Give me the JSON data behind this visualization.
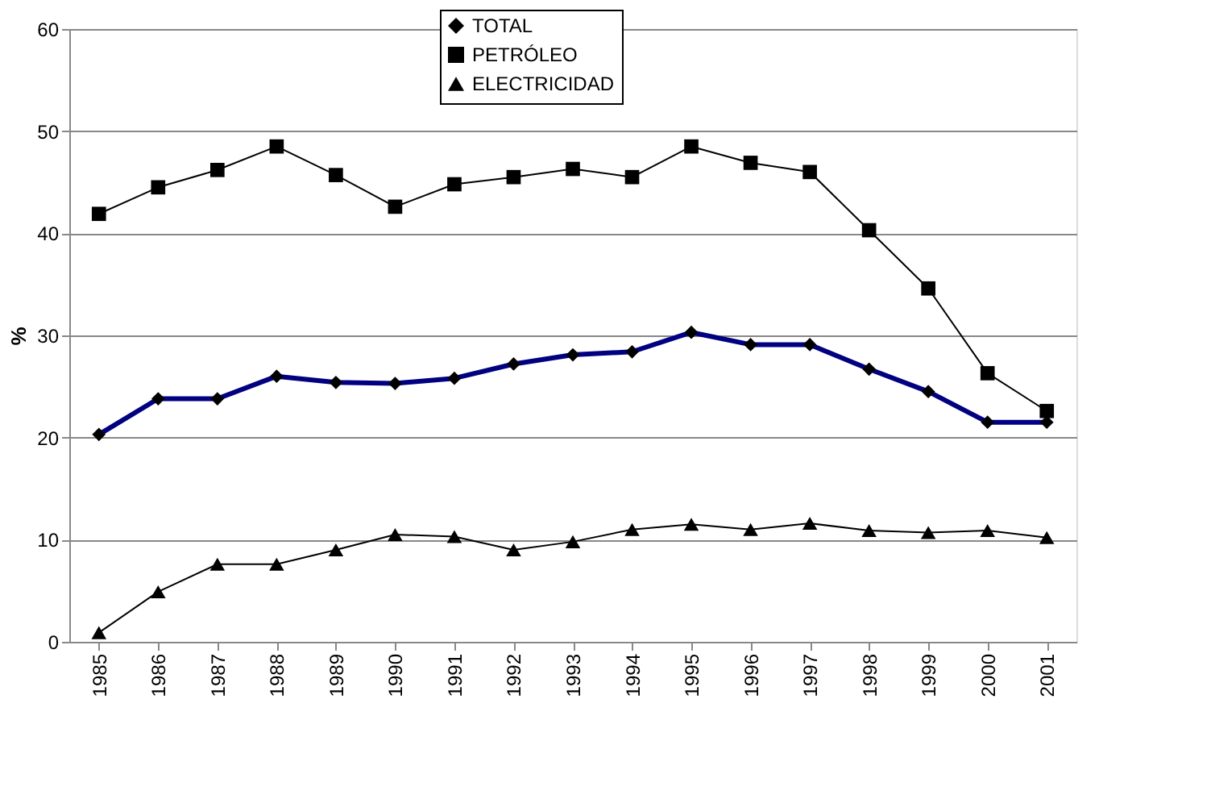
{
  "chart_data": {
    "type": "line",
    "ylabel": "%",
    "categories": [
      "1985",
      "1986",
      "1987",
      "1988",
      "1989",
      "1990",
      "1991",
      "1992",
      "1993",
      "1994",
      "1995",
      "1996",
      "1997",
      "1998",
      "1999",
      "2000",
      "2001"
    ],
    "series": [
      {
        "name": "TOTAL",
        "color": "#000080",
        "marker": "diamond",
        "values": [
          20.3,
          23.8,
          23.8,
          26.0,
          25.4,
          25.3,
          25.8,
          27.2,
          28.1,
          28.4,
          30.3,
          29.1,
          29.1,
          26.7,
          24.5,
          21.5,
          21.5
        ]
      },
      {
        "name": "PETRÓLEO",
        "color": "#000000",
        "marker": "square",
        "values": [
          41.9,
          44.5,
          46.2,
          48.5,
          45.7,
          42.6,
          44.8,
          45.5,
          46.3,
          45.5,
          48.5,
          46.9,
          46.0,
          40.3,
          34.6,
          26.3,
          22.6
        ]
      },
      {
        "name": "ELECTRICIDAD",
        "color": "#000000",
        "marker": "triangle",
        "values": [
          0.9,
          4.9,
          7.6,
          7.6,
          9.0,
          10.5,
          10.3,
          9.0,
          9.8,
          11.0,
          11.5,
          11.0,
          11.6,
          10.9,
          10.7,
          10.9,
          10.2
        ]
      }
    ],
    "ylim": [
      0,
      60
    ],
    "yticks": [
      0,
      10,
      20,
      30,
      40,
      50,
      60
    ],
    "grid": "y",
    "legend": "top",
    "line_style": "solid"
  }
}
